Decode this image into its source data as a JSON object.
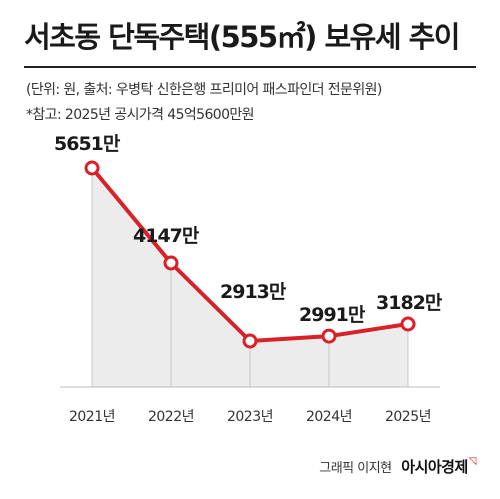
{
  "header": {
    "title": "서초동 단독주택(555㎡) 보유세 추이",
    "subtitle": "(단위: 원, 출처: 우병탁 신한은행 프리미어 패스파인더 전문위원)",
    "note": "*참고: 2025년 공시가격 45억5600만원"
  },
  "chart_data": {
    "type": "area",
    "categories": [
      "2021년",
      "2022년",
      "2023년",
      "2024년",
      "2025년"
    ],
    "values": [
      56510000,
      41470000,
      29130000,
      29910000,
      31820000
    ],
    "data_labels": [
      "5651만",
      "4147만",
      "2913만",
      "2991만",
      "3182만"
    ],
    "title": "서초동 단독주택(555㎡) 보유세 추이",
    "xlabel": "",
    "ylabel": "",
    "line_color": "#d7222a",
    "area_color": "#ececec",
    "grid": false
  },
  "footer": {
    "credit": "그래픽 이지현",
    "brand": "아시아경제"
  }
}
